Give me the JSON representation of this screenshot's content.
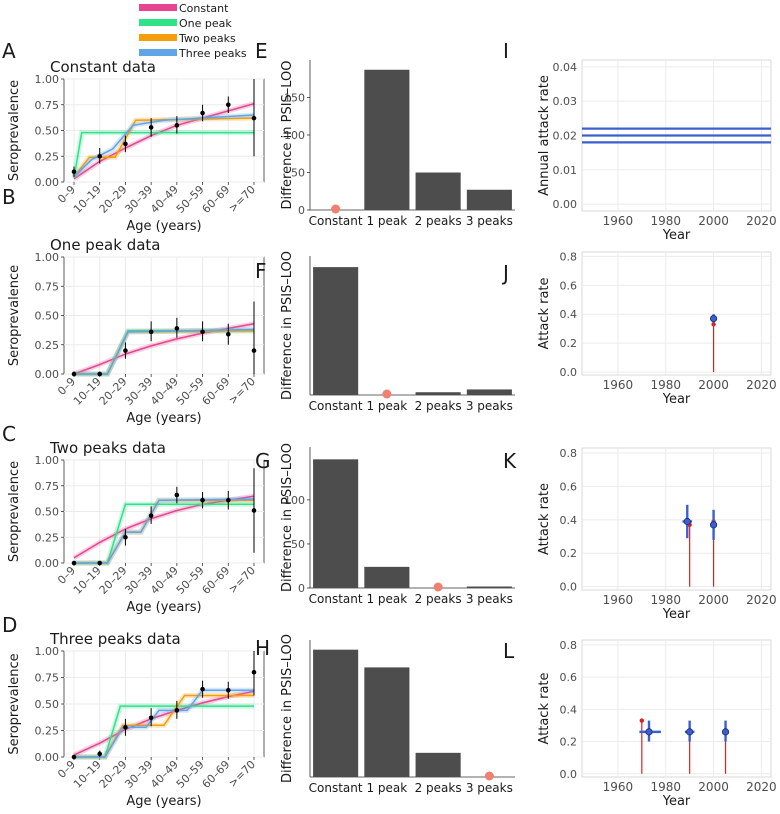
{
  "legend": {
    "items": [
      {
        "label": "Constant",
        "color": "#e6458f"
      },
      {
        "label": "One peak",
        "color": "#2ee38a"
      },
      {
        "label": "Two peaks",
        "color": "#f59e0b"
      },
      {
        "label": "Three peaks",
        "color": "#60a5e6"
      }
    ]
  },
  "colors": {
    "bar": "#4d4d4d",
    "dot": "#f08070",
    "grid": "#ebebeb",
    "est": "#3b5fd1",
    "truth": "#e02020"
  },
  "chart_data": [
    {
      "panel": "A",
      "type": "line",
      "title": "Constant data",
      "xlabel": "Age (years)",
      "ylabel": "Seroprevalence",
      "categories": [
        "0–9",
        "10–19",
        "20–29",
        "30–39",
        "40–49",
        "50–59",
        "60–69",
        ">=70"
      ],
      "yticks": [
        "0.00",
        "0.25",
        "0.50",
        "0.75",
        "1.00"
      ],
      "ylim": [
        0,
        1
      ],
      "observed": [
        {
          "y": 0.1,
          "lo": 0.05,
          "hi": 0.15
        },
        {
          "y": 0.25,
          "lo": 0.18,
          "hi": 0.33
        },
        {
          "y": 0.37,
          "lo": 0.29,
          "hi": 0.45
        },
        {
          "y": 0.53,
          "lo": 0.44,
          "hi": 0.62
        },
        {
          "y": 0.55,
          "lo": 0.47,
          "hi": 0.64
        },
        {
          "y": 0.67,
          "lo": 0.59,
          "hi": 0.75
        },
        {
          "y": 0.75,
          "lo": 0.67,
          "hi": 0.83
        },
        {
          "y": 0.62,
          "lo": 0.25,
          "hi": 1.0
        }
      ],
      "fits": [
        {
          "name": "Constant",
          "color": "#e6458f",
          "points": [
            [
              0,
              0.03
            ],
            [
              1,
              0.2
            ],
            [
              2,
              0.33
            ],
            [
              3,
              0.45
            ],
            [
              4,
              0.55
            ],
            [
              5,
              0.62
            ],
            [
              6,
              0.69
            ],
            [
              7,
              0.76
            ]
          ]
        },
        {
          "name": "One peak",
          "color": "#2ee38a",
          "points": [
            [
              0,
              0.04
            ],
            [
              0.3,
              0.48
            ],
            [
              7,
              0.48
            ]
          ]
        },
        {
          "name": "Two peaks",
          "color": "#f59e0b",
          "points": [
            [
              0,
              0.05
            ],
            [
              0.6,
              0.24
            ],
            [
              1.6,
              0.24
            ],
            [
              2.4,
              0.6
            ],
            [
              7,
              0.62
            ]
          ]
        },
        {
          "name": "Three peaks",
          "color": "#60a5e6",
          "points": [
            [
              0,
              0.05
            ],
            [
              0.7,
              0.22
            ],
            [
              1.5,
              0.32
            ],
            [
              2.3,
              0.55
            ],
            [
              3.5,
              0.6
            ],
            [
              7,
              0.65
            ]
          ]
        }
      ]
    },
    {
      "panel": "B",
      "type": "line",
      "title": "One peak data",
      "xlabel": "Age (years)",
      "ylabel": "Seroprevalence",
      "categories": [
        "0–9",
        "10–19",
        "20–29",
        "30–39",
        "40–49",
        "50–59",
        "60–69",
        ">=70"
      ],
      "yticks": [
        "0.00",
        "0.25",
        "0.50",
        "0.75",
        "1.00"
      ],
      "ylim": [
        0,
        1
      ],
      "observed": [
        {
          "y": 0.0,
          "lo": 0.0,
          "hi": 0.02
        },
        {
          "y": 0.0,
          "lo": 0.0,
          "hi": 0.02
        },
        {
          "y": 0.2,
          "lo": 0.13,
          "hi": 0.27
        },
        {
          "y": 0.36,
          "lo": 0.28,
          "hi": 0.45
        },
        {
          "y": 0.39,
          "lo": 0.31,
          "hi": 0.48
        },
        {
          "y": 0.36,
          "lo": 0.28,
          "hi": 0.45
        },
        {
          "y": 0.34,
          "lo": 0.25,
          "hi": 0.43
        },
        {
          "y": 0.2,
          "lo": 0.0,
          "hi": 0.62
        }
      ],
      "fits": [
        {
          "name": "Constant",
          "color": "#e6458f",
          "points": [
            [
              0,
              0.0
            ],
            [
              1,
              0.08
            ],
            [
              2,
              0.17
            ],
            [
              3,
              0.24
            ],
            [
              4,
              0.3
            ],
            [
              5,
              0.35
            ],
            [
              6,
              0.39
            ],
            [
              7,
              0.43
            ]
          ]
        },
        {
          "name": "One peak",
          "color": "#2ee38a",
          "points": [
            [
              0,
              0.0
            ],
            [
              1.3,
              0.0
            ],
            [
              2.1,
              0.37
            ],
            [
              7,
              0.37
            ]
          ]
        },
        {
          "name": "Two peaks",
          "color": "#f59e0b",
          "points": [
            [
              0,
              0.0
            ],
            [
              1.3,
              0.0
            ],
            [
              2.1,
              0.36
            ],
            [
              7,
              0.37
            ]
          ]
        },
        {
          "name": "Three peaks",
          "color": "#60a5e6",
          "points": [
            [
              0,
              0.0
            ],
            [
              1.3,
              0.0
            ],
            [
              2.1,
              0.36
            ],
            [
              7,
              0.38
            ]
          ]
        }
      ]
    },
    {
      "panel": "C",
      "type": "line",
      "title": "Two peaks data",
      "xlabel": "Age (years)",
      "ylabel": "Seroprevalence",
      "categories": [
        "0–9",
        "10–19",
        "20–29",
        "30–39",
        "40–49",
        "50–59",
        "60–69",
        ">=70"
      ],
      "yticks": [
        "0.00",
        "0.25",
        "0.50",
        "0.75",
        "1.00"
      ],
      "ylim": [
        0,
        1
      ],
      "observed": [
        {
          "y": 0.0,
          "lo": 0.0,
          "hi": 0.02
        },
        {
          "y": 0.0,
          "lo": 0.0,
          "hi": 0.02
        },
        {
          "y": 0.25,
          "lo": 0.17,
          "hi": 0.33
        },
        {
          "y": 0.46,
          "lo": 0.38,
          "hi": 0.55
        },
        {
          "y": 0.66,
          "lo": 0.58,
          "hi": 0.74
        },
        {
          "y": 0.61,
          "lo": 0.53,
          "hi": 0.69
        },
        {
          "y": 0.61,
          "lo": 0.52,
          "hi": 0.7
        },
        {
          "y": 0.51,
          "lo": 0.1,
          "hi": 0.92
        }
      ],
      "fits": [
        {
          "name": "Constant",
          "color": "#e6458f",
          "points": [
            [
              0,
              0.05
            ],
            [
              1,
              0.2
            ],
            [
              2,
              0.33
            ],
            [
              3,
              0.43
            ],
            [
              4,
              0.51
            ],
            [
              5,
              0.57
            ],
            [
              6,
              0.61
            ],
            [
              7,
              0.65
            ]
          ]
        },
        {
          "name": "One peak",
          "color": "#2ee38a",
          "points": [
            [
              0,
              0.0
            ],
            [
              1.3,
              0.0
            ],
            [
              2.0,
              0.57
            ],
            [
              7,
              0.57
            ]
          ]
        },
        {
          "name": "Two peaks",
          "color": "#f59e0b",
          "points": [
            [
              0,
              0.0
            ],
            [
              1.3,
              0.0
            ],
            [
              2.0,
              0.3
            ],
            [
              2.6,
              0.3
            ],
            [
              3.3,
              0.61
            ],
            [
              7,
              0.61
            ]
          ]
        },
        {
          "name": "Three peaks",
          "color": "#60a5e6",
          "points": [
            [
              0,
              0.0
            ],
            [
              1.3,
              0.0
            ],
            [
              2.0,
              0.3
            ],
            [
              2.6,
              0.3
            ],
            [
              3.3,
              0.61
            ],
            [
              7,
              0.62
            ]
          ]
        }
      ]
    },
    {
      "panel": "D",
      "type": "line",
      "title": "Three peaks data",
      "xlabel": "Age (years)",
      "ylabel": "Seroprevalence",
      "categories": [
        "0–9",
        "10–19",
        "20–29",
        "30–39",
        "40–49",
        "50–59",
        "60–69",
        ">=70"
      ],
      "yticks": [
        "0.00",
        "0.25",
        "0.50",
        "0.75",
        "1.00"
      ],
      "ylim": [
        0,
        1
      ],
      "observed": [
        {
          "y": 0.0,
          "lo": 0.0,
          "hi": 0.02
        },
        {
          "y": 0.03,
          "lo": 0.0,
          "hi": 0.06
        },
        {
          "y": 0.28,
          "lo": 0.2,
          "hi": 0.36
        },
        {
          "y": 0.37,
          "lo": 0.29,
          "hi": 0.46
        },
        {
          "y": 0.44,
          "lo": 0.36,
          "hi": 0.53
        },
        {
          "y": 0.64,
          "lo": 0.56,
          "hi": 0.72
        },
        {
          "y": 0.63,
          "lo": 0.55,
          "hi": 0.71
        },
        {
          "y": 0.8,
          "lo": 0.58,
          "hi": 1.0
        }
      ],
      "fits": [
        {
          "name": "Constant",
          "color": "#e6458f",
          "points": [
            [
              0,
              0.02
            ],
            [
              1,
              0.13
            ],
            [
              2,
              0.26
            ],
            [
              3,
              0.36
            ],
            [
              4,
              0.44
            ],
            [
              5,
              0.51
            ],
            [
              6,
              0.57
            ],
            [
              7,
              0.62
            ]
          ]
        },
        {
          "name": "One peak",
          "color": "#2ee38a",
          "points": [
            [
              0,
              0.0
            ],
            [
              1.2,
              0.0
            ],
            [
              1.8,
              0.48
            ],
            [
              7,
              0.48
            ]
          ]
        },
        {
          "name": "Two peaks",
          "color": "#f59e0b",
          "points": [
            [
              0,
              0.0
            ],
            [
              1.2,
              0.0
            ],
            [
              1.9,
              0.3
            ],
            [
              3.5,
              0.3
            ],
            [
              4.3,
              0.58
            ],
            [
              7,
              0.58
            ]
          ]
        },
        {
          "name": "Three peaks",
          "color": "#60a5e6",
          "points": [
            [
              0,
              0.0
            ],
            [
              1.2,
              0.0
            ],
            [
              1.9,
              0.28
            ],
            [
              2.8,
              0.28
            ],
            [
              3.3,
              0.44
            ],
            [
              4.4,
              0.44
            ],
            [
              5.0,
              0.63
            ],
            [
              7,
              0.63
            ]
          ]
        }
      ]
    },
    {
      "panel": "E",
      "type": "bar",
      "ylabel": "Difference in PSIS–LOO",
      "categories": [
        "Constant",
        "1 peak",
        "2 peaks",
        "3 peaks"
      ],
      "values": [
        0,
        187,
        50,
        27
      ],
      "best": "Constant",
      "ylim": [
        0,
        200
      ],
      "yticks": [
        0,
        50,
        100,
        150
      ]
    },
    {
      "panel": "F",
      "type": "bar",
      "ylabel": "Difference in PSIS–LOO",
      "categories": [
        "Constant",
        "1 peak",
        "2 peaks",
        "3 peaks"
      ],
      "values": [
        92,
        0,
        2,
        4
      ],
      "best": "1 peak",
      "ylim": [
        0,
        100
      ],
      "yticks": []
    },
    {
      "panel": "G",
      "type": "bar",
      "ylabel": "Difference in PSIS–LOO",
      "categories": [
        "Constant",
        "1 peak",
        "2 peaks",
        "3 peaks"
      ],
      "values": [
        146,
        24,
        0,
        1
      ],
      "best": "2 peaks",
      "ylim": [
        0,
        160
      ],
      "yticks": [
        0,
        50,
        100
      ]
    },
    {
      "panel": "H",
      "type": "bar",
      "ylabel": "Difference in PSIS–LOO",
      "categories": [
        "Constant",
        "1 peak",
        "2 peaks",
        "3 peaks"
      ],
      "values": [
        79,
        68,
        15,
        0
      ],
      "best": "3 peaks",
      "ylim": [
        0,
        85
      ],
      "yticks": []
    },
    {
      "panel": "I",
      "type": "line",
      "xlabel": "Year",
      "ylabel": "Annual attack rate",
      "xticks": [
        1960,
        1980,
        2000,
        2020
      ],
      "xlim": [
        1945,
        2024
      ],
      "yticks": [
        "0.00",
        "0.01",
        "0.02",
        "0.03",
        "0.04"
      ],
      "ylim": [
        -0.002,
        0.042
      ],
      "hlines": [
        0.018,
        0.02,
        0.022
      ]
    },
    {
      "panel": "J",
      "type": "scatter",
      "xlabel": "Year",
      "ylabel": "Attack rate",
      "xticks": [
        1960,
        1980,
        2000,
        2020
      ],
      "xlim": [
        1945,
        2024
      ],
      "yticks": [
        "0.0",
        "0.2",
        "0.4",
        "0.6",
        "0.8"
      ],
      "ylim": [
        -0.02,
        0.83
      ],
      "truth": [
        {
          "x": 2000,
          "y": 0.33
        }
      ],
      "estimates": [
        {
          "x": 2000,
          "y": 0.37,
          "ylo": 0.34,
          "yhi": 0.4,
          "xlo": 1999.3,
          "xhi": 2000.7
        }
      ]
    },
    {
      "panel": "K",
      "type": "scatter",
      "xlabel": "Year",
      "ylabel": "Attack rate",
      "xticks": [
        1960,
        1980,
        2000,
        2020
      ],
      "xlim": [
        1945,
        2024
      ],
      "yticks": [
        "0.0",
        "0.2",
        "0.4",
        "0.6",
        "0.8"
      ],
      "ylim": [
        -0.02,
        0.83
      ],
      "truth": [
        {
          "x": 1990,
          "y": 0.37
        },
        {
          "x": 2000,
          "y": 0.39
        }
      ],
      "estimates": [
        {
          "x": 1989,
          "y": 0.39,
          "ylo": 0.29,
          "yhi": 0.49,
          "xlo": 1987,
          "xhi": 1991
        },
        {
          "x": 2000,
          "y": 0.37,
          "ylo": 0.28,
          "yhi": 0.46,
          "xlo": 1999,
          "xhi": 2001
        }
      ]
    },
    {
      "panel": "L",
      "type": "scatter",
      "xlabel": "Year",
      "ylabel": "Attack rate",
      "xticks": [
        1960,
        1980,
        2000,
        2020
      ],
      "xlim": [
        1945,
        2024
      ],
      "yticks": [
        "0.0",
        "0.2",
        "0.4",
        "0.6",
        "0.8"
      ],
      "ylim": [
        -0.02,
        0.83
      ],
      "truth": [
        {
          "x": 1970,
          "y": 0.33
        },
        {
          "x": 1990,
          "y": 0.26
        },
        {
          "x": 2005,
          "y": 0.26
        }
      ],
      "estimates": [
        {
          "x": 1973,
          "y": 0.26,
          "ylo": 0.2,
          "yhi": 0.33,
          "xlo": 1969,
          "xhi": 1978
        },
        {
          "x": 1990,
          "y": 0.26,
          "ylo": 0.2,
          "yhi": 0.33,
          "xlo": 1988,
          "xhi": 1992
        },
        {
          "x": 2005,
          "y": 0.26,
          "ylo": 0.2,
          "yhi": 0.33,
          "xlo": 2004,
          "xhi": 2006
        }
      ]
    }
  ]
}
